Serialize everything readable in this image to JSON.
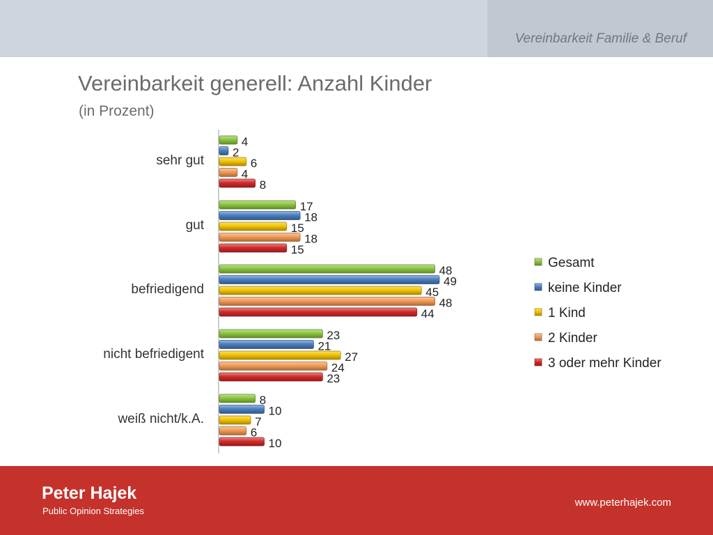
{
  "header": {
    "section_label": "Vereinbarkeit Familie & Beruf"
  },
  "slide": {
    "title": "Vereinbarkeit generell: Anzahl Kinder",
    "subtitle": "(in Prozent)"
  },
  "footer": {
    "brand_name": "Peter Hajek",
    "brand_tagline": "Public Opinion Strategies",
    "url": "www.peterhajek.com"
  },
  "chart_data": {
    "type": "bar",
    "orientation": "horizontal",
    "categories": [
      "sehr gut",
      "gut",
      "befriedigend",
      "nicht befriedigent",
      "weiß nicht/k.A."
    ],
    "series": [
      {
        "name": "Gesamt",
        "color": "#8cc63f",
        "values": [
          4,
          17,
          48,
          23,
          8
        ]
      },
      {
        "name": "keine Kinder",
        "color": "#4a7fc1",
        "values": [
          2,
          18,
          49,
          21,
          10
        ]
      },
      {
        "name": "1 Kind",
        "color": "#f4c400",
        "values": [
          6,
          15,
          45,
          27,
          7
        ]
      },
      {
        "name": "2 Kinder",
        "color": "#f39a55",
        "values": [
          4,
          18,
          48,
          24,
          6
        ]
      },
      {
        "name": "3 oder mehr Kinder",
        "color": "#d42a2a",
        "values": [
          8,
          15,
          44,
          23,
          10
        ]
      }
    ],
    "data_labels": true,
    "legend_position": "right",
    "grid": false
  }
}
